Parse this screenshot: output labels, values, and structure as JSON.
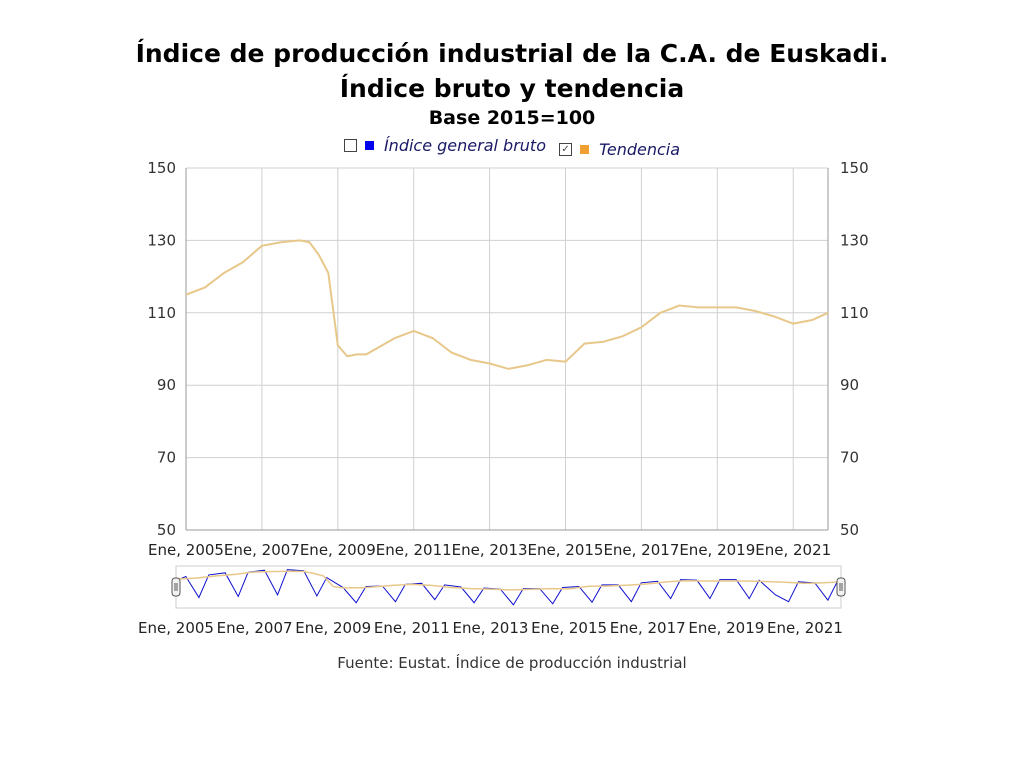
{
  "title_lines": [
    "Índice de producción industrial de la C.A. de Euskadi.",
    "Índice bruto y tendencia"
  ],
  "subtitle": "Base 2015=100",
  "legend": [
    {
      "label": "Índice general bruto",
      "color": "#0000ee",
      "checked": false
    },
    {
      "label": "Tendencia",
      "color": "#f0a030",
      "checked": true
    }
  ],
  "source": "Fuente: Eustat. Índice de producción industrial",
  "colors": {
    "trend": "#e8c88a",
    "raw": "#1010d0",
    "grid": "#d0d0d0",
    "axis": "#999999"
  },
  "chart_data": {
    "type": "line",
    "title": "Índice de producción industrial de la C.A. de Euskadi. Índice bruto y tendencia",
    "subtitle": "Base 2015=100",
    "ylim": [
      50,
      150
    ],
    "y_ticks": [
      50,
      70,
      90,
      110,
      130,
      150
    ],
    "y_tick_labels": [
      "50",
      "70",
      "90",
      "110",
      "130",
      "150"
    ],
    "x_range": [
      "2005-01",
      "2021-12"
    ],
    "x_ticks": [
      "2005-01",
      "2007-01",
      "2009-01",
      "2011-01",
      "2013-01",
      "2015-01",
      "2017-01",
      "2019-01",
      "2021-01"
    ],
    "x_tick_labels": [
      "Ene, 2005",
      "Ene, 2007",
      "Ene, 2009",
      "Ene, 2011",
      "Ene, 2013",
      "Ene, 2015",
      "Ene, 2017",
      "Ene, 2019",
      "Ene, 2021"
    ],
    "grid": true,
    "legend_position": "top",
    "series": [
      {
        "name": "Tendencia",
        "visible": true,
        "x": [
          "2005-01",
          "2005-07",
          "2006-01",
          "2006-07",
          "2007-01",
          "2007-07",
          "2008-01",
          "2008-04",
          "2008-07",
          "2008-10",
          "2009-01",
          "2009-04",
          "2009-07",
          "2009-10",
          "2010-01",
          "2010-07",
          "2011-01",
          "2011-07",
          "2012-01",
          "2012-07",
          "2013-01",
          "2013-07",
          "2014-01",
          "2014-07",
          "2015-01",
          "2015-07",
          "2016-01",
          "2016-07",
          "2017-01",
          "2017-07",
          "2018-01",
          "2018-07",
          "2019-01",
          "2019-07",
          "2020-01",
          "2020-07",
          "2021-01",
          "2021-07",
          "2021-12"
        ],
        "values": [
          115,
          117,
          121,
          124,
          128.5,
          129.5,
          130,
          129.5,
          126,
          121,
          101,
          98,
          98.5,
          98.5,
          100,
          103,
          105,
          103,
          99,
          97,
          96,
          94.5,
          95.5,
          97,
          96.5,
          101.5,
          102,
          103.5,
          106,
          110,
          112,
          111.5,
          111.5,
          111.5,
          110.5,
          109,
          107,
          108,
          110
        ]
      },
      {
        "name": "Índice general bruto",
        "visible": false,
        "x": [
          "2005-01",
          "2005-04",
          "2005-08",
          "2005-11",
          "2006-04",
          "2006-08",
          "2006-11",
          "2007-04",
          "2007-08",
          "2007-11",
          "2008-04",
          "2008-08",
          "2008-11",
          "2009-04",
          "2009-08",
          "2009-11",
          "2010-04",
          "2010-08",
          "2010-11",
          "2011-04",
          "2011-08",
          "2011-11",
          "2012-04",
          "2012-08",
          "2012-11",
          "2013-04",
          "2013-08",
          "2013-11",
          "2014-04",
          "2014-08",
          "2014-11",
          "2015-04",
          "2015-08",
          "2015-11",
          "2016-04",
          "2016-08",
          "2016-11",
          "2017-04",
          "2017-08",
          "2017-11",
          "2018-04",
          "2018-08",
          "2018-11",
          "2019-04",
          "2019-08",
          "2019-11",
          "2020-04",
          "2020-08",
          "2020-11",
          "2021-04",
          "2021-08",
          "2021-11"
        ],
        "values": [
          112,
          120,
          80,
          123,
          127,
          82,
          128,
          132,
          85,
          133,
          131,
          83,
          118,
          99,
          70,
          101,
          102,
          72,
          105,
          107,
          76,
          104,
          100,
          70,
          98,
          96,
          66,
          97,
          97,
          68,
          99,
          101,
          71,
          104,
          104,
          72,
          108,
          111,
          78,
          114,
          113,
          78,
          114,
          114,
          78,
          113,
          85,
          72,
          110,
          108,
          75,
          112
        ]
      }
    ]
  }
}
